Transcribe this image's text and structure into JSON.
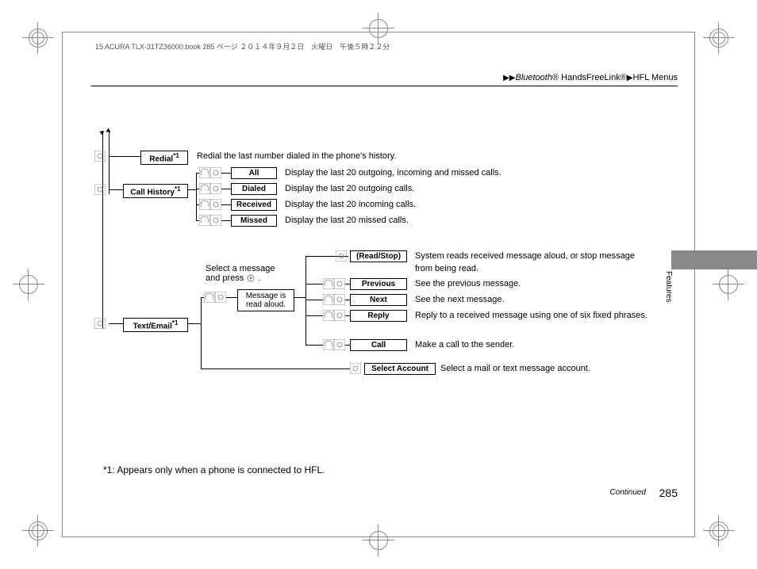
{
  "print_info": "15 ACURA TLX-31TZ36000.book  285 ページ  ２０１４年９月２日　火曜日　午後５時２２分",
  "breadcrumb": {
    "bt": "Bluetooth",
    "reg1": "®",
    "hfl1": " HandsFreeLink",
    "reg2": "®",
    "hfl2": "HFL Menus"
  },
  "side_tab": "Features",
  "continued": "Continued",
  "page_number": "285",
  "footnote": "*1: Appears only when a phone is connected to HFL.",
  "redial": {
    "label": "Redial",
    "sup": "*1",
    "desc": "Redial the last number dialed in the phone's history."
  },
  "call_history": {
    "label": "Call History",
    "sup": "*1",
    "items": {
      "all": {
        "label": "All",
        "desc": "Display the last 20 outgoing, incoming and missed calls."
      },
      "dialed": {
        "label": "Dialed",
        "desc": "Display the last 20 outgoing calls."
      },
      "received": {
        "label": "Received",
        "desc": "Display the last 20 incoming calls."
      },
      "missed": {
        "label": "Missed",
        "desc": "Display the last 20 missed calls."
      }
    }
  },
  "text_email": {
    "label": "Text/Email",
    "sup": "*1",
    "select_note_line1": "Select a message",
    "select_note_line2": "and press ",
    "select_note_line2_end": ".",
    "read_aloud": "Message is\nread aloud.",
    "items": {
      "read_stop": {
        "label": "(Read/Stop)",
        "desc1": "System reads received message aloud, or stop message",
        "desc2": "from being read."
      },
      "previous": {
        "label": "Previous",
        "desc": "See the previous message."
      },
      "next": {
        "label": "Next",
        "desc": "See the next message."
      },
      "reply": {
        "label": "Reply",
        "desc": "Reply to a received message using one of six fixed phrases."
      },
      "call": {
        "label": "Call",
        "desc": "Make a call to the sender."
      },
      "select_account": {
        "label": "Select Account",
        "desc": "Select a mail or text message account."
      }
    }
  }
}
